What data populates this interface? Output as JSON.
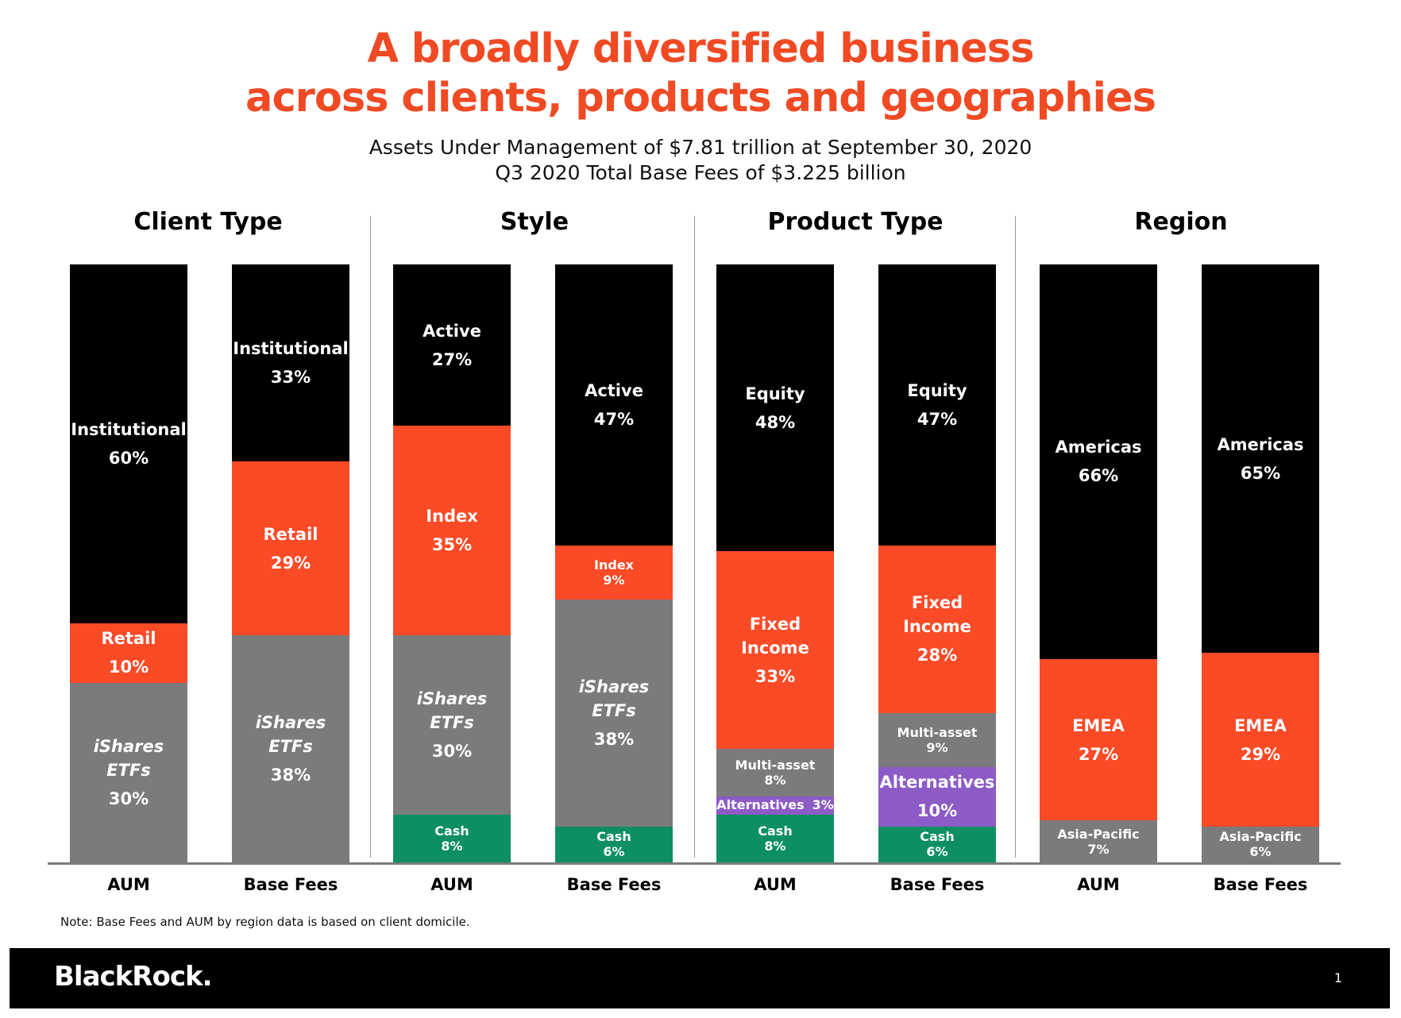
{
  "title": {
    "line1": "A broadly diversified business",
    "line2": "across clients, products and geographies"
  },
  "subtitle": {
    "line1": "Assets Under Management of $7.81 trillion at September 30, 2020",
    "line2": "Q3 2020 Total Base Fees of $3.225 billion"
  },
  "colors": {
    "black": "#000000",
    "orange": "#fb4a26",
    "gray": "#7b7b7d",
    "green": "#0d8f63",
    "purple": "#8c5bc6",
    "accent": "#f04a24"
  },
  "chart_data": [
    {
      "type": "bar",
      "stacked": true,
      "title": "Client Type",
      "categories": [
        "AUM",
        "Base Fees"
      ],
      "series": [
        {
          "name": "iShares ETFs",
          "color": "gray",
          "values": [
            30,
            38
          ],
          "labels": [
            "30%",
            "38%"
          ]
        },
        {
          "name": "Retail",
          "color": "orange",
          "values": [
            10,
            29
          ],
          "labels": [
            "10%",
            "29%"
          ]
        },
        {
          "name": "Institutional",
          "color": "black",
          "values": [
            60,
            33
          ],
          "labels": [
            "60%",
            "33%"
          ]
        }
      ]
    },
    {
      "type": "bar",
      "stacked": true,
      "title": "Style",
      "categories": [
        "AUM",
        "Base Fees"
      ],
      "series": [
        {
          "name": "Cash",
          "color": "green",
          "values": [
            8,
            6
          ],
          "labels": [
            "8%",
            "6%"
          ]
        },
        {
          "name": "iShares ETFs",
          "color": "gray",
          "values": [
            30,
            38
          ],
          "labels": [
            "30%",
            "38%"
          ]
        },
        {
          "name": "Index",
          "color": "orange",
          "values": [
            35,
            9
          ],
          "labels": [
            "35%",
            "9%"
          ]
        },
        {
          "name": "Active",
          "color": "black",
          "values": [
            27,
            47
          ],
          "labels": [
            "27%",
            "47%"
          ]
        }
      ]
    },
    {
      "type": "bar",
      "stacked": true,
      "title": "Product Type",
      "categories": [
        "AUM",
        "Base Fees"
      ],
      "series": [
        {
          "name": "Cash",
          "color": "green",
          "values": [
            8,
            6
          ],
          "labels": [
            "8%",
            "6%"
          ]
        },
        {
          "name": "Alternatives",
          "color": "purple",
          "values": [
            3,
            10
          ],
          "labels": [
            "3%",
            "10%"
          ]
        },
        {
          "name": "Multi-asset",
          "color": "gray",
          "values": [
            8,
            9
          ],
          "labels": [
            "8%",
            "9%"
          ]
        },
        {
          "name": "Fixed Income",
          "color": "orange",
          "values": [
            33,
            28
          ],
          "labels": [
            "33%",
            "28%"
          ]
        },
        {
          "name": "Equity",
          "color": "black",
          "values": [
            48,
            47
          ],
          "labels": [
            "48%",
            "47%"
          ]
        }
      ]
    },
    {
      "type": "bar",
      "stacked": true,
      "title": "Region",
      "categories": [
        "AUM",
        "Base Fees"
      ],
      "series": [
        {
          "name": "Asia-Pacific",
          "color": "gray",
          "values": [
            7,
            6
          ],
          "labels": [
            "7%",
            "6%"
          ]
        },
        {
          "name": "EMEA",
          "color": "orange",
          "values": [
            27,
            29
          ],
          "labels": [
            "27%",
            "29%"
          ]
        },
        {
          "name": "Americas",
          "color": "black",
          "values": [
            66,
            65
          ],
          "labels": [
            "66%",
            "65%"
          ]
        }
      ]
    }
  ],
  "note": "Note: Base Fees and AUM by region data is based on client domicile.",
  "footer": {
    "logo": "BlackRock.",
    "page_number": "1"
  }
}
